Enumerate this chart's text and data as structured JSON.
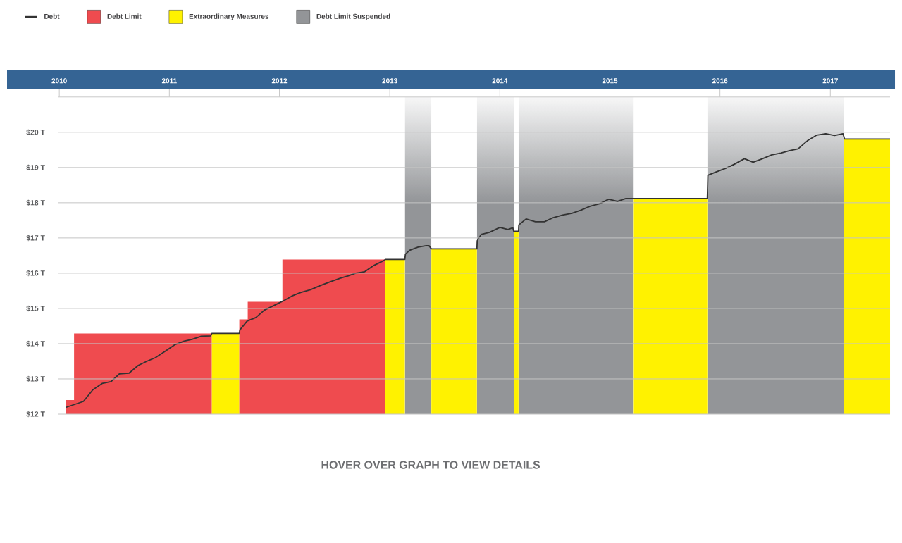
{
  "chart_data": {
    "type": "area",
    "annotations": [
      "HOVER OVER GRAPH TO VIEW DETAILS"
    ],
    "xlim": [
      "2009-12-27",
      "2017-07-18"
    ],
    "xticks": [
      {
        "value": "2010-01-01",
        "label": "2010"
      },
      {
        "value": "2011-01-01",
        "label": "2011"
      },
      {
        "value": "2012-01-01",
        "label": "2012"
      },
      {
        "value": "2013-01-01",
        "label": "2013"
      },
      {
        "value": "2014-01-01",
        "label": "2014"
      },
      {
        "value": "2015-01-01",
        "label": "2015"
      },
      {
        "value": "2016-01-01",
        "label": "2016"
      },
      {
        "value": "2017-01-01",
        "label": "2017"
      }
    ],
    "ylim": [
      12,
      21
    ],
    "yticks": [
      {
        "value": 12,
        "label": "$12 T"
      },
      {
        "value": 13,
        "label": "$13 T"
      },
      {
        "value": 14,
        "label": "$14 T"
      },
      {
        "value": 15,
        "label": "$15 T"
      },
      {
        "value": 16,
        "label": "$16 T"
      },
      {
        "value": 17,
        "label": "$17 T"
      },
      {
        "value": 18,
        "label": "$18 T"
      },
      {
        "value": 19,
        "label": "$19 T"
      },
      {
        "value": 20,
        "label": "$20 T"
      }
    ],
    "grid": "y",
    "legend": "top left",
    "series": [
      {
        "name": "Debt",
        "type": "line",
        "color": "#333333",
        "x": [
          "2010-01-22",
          "2010-03-22",
          "2010-04-22",
          "2010-05-23",
          "2010-06-21",
          "2010-07-19",
          "2010-08-20",
          "2010-09-19",
          "2010-10-18",
          "2010-11-15",
          "2010-12-19",
          "2011-01-19",
          "2011-02-19",
          "2011-03-17",
          "2011-04-17",
          "2011-05-18",
          "2011-05-22",
          "2011-08-21",
          "2011-08-23",
          "2011-09-16",
          "2011-10-15",
          "2011-11-12",
          "2011-12-11",
          "2012-01-13",
          "2012-02-11",
          "2012-03-11",
          "2012-04-13",
          "2012-05-16",
          "2012-06-19",
          "2012-07-22",
          "2012-08-15",
          "2012-09-10",
          "2012-10-09",
          "2012-11-07",
          "2012-12-15",
          "2012-12-17",
          "2013-02-20",
          "2013-02-22",
          "2013-03-08",
          "2013-04-05",
          "2013-05-02",
          "2013-05-11",
          "2013-05-19",
          "2013-10-17",
          "2013-10-18",
          "2013-10-31",
          "2013-11-28",
          "2014-01-01",
          "2014-01-28",
          "2014-02-13",
          "2014-02-16",
          "2014-03-04",
          "2014-03-05",
          "2014-03-29",
          "2014-04-29",
          "2014-05-29",
          "2014-06-25",
          "2014-07-28",
          "2014-08-28",
          "2014-09-27",
          "2014-10-27",
          "2014-11-27",
          "2014-12-28",
          "2015-01-26",
          "2015-02-23",
          "2015-11-20",
          "2015-11-22",
          "2015-12-18",
          "2016-01-21",
          "2016-02-17",
          "2016-03-22",
          "2016-04-20",
          "2016-05-21",
          "2016-06-21",
          "2016-07-21",
          "2016-08-19",
          "2016-09-16",
          "2016-10-17",
          "2016-11-17",
          "2016-12-17",
          "2017-01-15",
          "2017-02-12",
          "2017-02-17",
          "2017-07-18"
        ],
        "values": [
          12.19,
          12.36,
          12.69,
          12.87,
          12.92,
          13.14,
          13.16,
          13.38,
          13.5,
          13.6,
          13.79,
          13.97,
          14.07,
          14.12,
          14.21,
          14.22,
          14.29,
          14.29,
          14.39,
          14.64,
          14.74,
          14.95,
          15.07,
          15.21,
          15.35,
          15.45,
          15.53,
          15.65,
          15.76,
          15.86,
          15.92,
          16.0,
          16.04,
          16.21,
          16.37,
          16.39,
          16.39,
          16.54,
          16.65,
          16.74,
          16.78,
          16.78,
          16.69,
          16.69,
          16.92,
          17.1,
          17.16,
          17.3,
          17.24,
          17.29,
          17.19,
          17.19,
          17.37,
          17.54,
          17.46,
          17.46,
          17.57,
          17.65,
          17.7,
          17.79,
          17.9,
          17.97,
          18.1,
          18.04,
          18.12,
          18.12,
          18.78,
          18.87,
          18.98,
          19.09,
          19.25,
          19.15,
          19.25,
          19.36,
          19.41,
          19.48,
          19.53,
          19.76,
          19.92,
          19.96,
          19.91,
          19.96,
          19.81,
          19.81
        ]
      },
      {
        "name": "Debt Limit",
        "color": "#ef4b4f",
        "x": [
          "2010-01-22",
          "2010-02-19",
          "2010-02-19",
          "2011-05-22"
        ],
        "values": [
          12.4,
          12.4,
          14.29,
          14.29
        ]
      },
      {
        "name": "Extraordinary Measures",
        "color": "#fff200",
        "x": [
          "2011-05-22",
          "2011-08-21"
        ],
        "values": [
          14.29,
          14.29
        ]
      },
      {
        "color": "#ef4b4f",
        "x": [
          "2011-08-21",
          "2011-09-18",
          "2011-09-18",
          "2012-01-11",
          "2012-01-11",
          "2012-12-17"
        ],
        "values": [
          14.69,
          14.69,
          15.19,
          15.19,
          16.39,
          16.39
        ]
      },
      {
        "color": "#fff200",
        "x": [
          "2012-12-17",
          "2013-02-20"
        ],
        "values": [
          16.39,
          16.39
        ]
      },
      {
        "color": "#fff200",
        "x": [
          "2013-05-19",
          "2013-10-17"
        ],
        "values": [
          16.69,
          16.69
        ]
      },
      {
        "color": "#fff200",
        "x": [
          "2014-02-16",
          "2014-03-04"
        ],
        "values": [
          17.19,
          17.19
        ]
      },
      {
        "color": "#fff200",
        "x": [
          "2015-03-19",
          "2015-11-20"
        ],
        "values": [
          18.12,
          18.12
        ]
      },
      {
        "color": "#fff200",
        "x": [
          "2017-02-16",
          "2017-07-18"
        ],
        "values": [
          19.81,
          19.81
        ]
      }
    ],
    "bands": [
      {
        "axis": "x",
        "from": "2013-02-20",
        "to": "2013-05-19",
        "color": "#939598",
        "label": "Debt Limit Suspended"
      },
      {
        "axis": "x",
        "from": "2013-10-17",
        "to": "2014-02-16",
        "color": "#939598"
      },
      {
        "axis": "x",
        "from": "2014-03-04",
        "to": "2015-03-19",
        "color": "#939598"
      },
      {
        "axis": "x",
        "from": "2015-11-20",
        "to": "2017-02-16",
        "color": "#939598"
      }
    ]
  }
}
